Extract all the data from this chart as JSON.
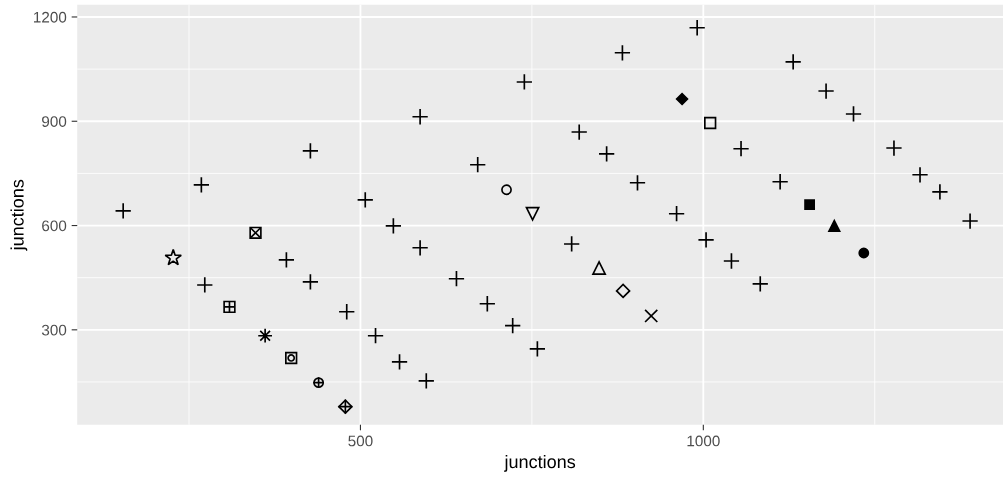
{
  "chart_data": {
    "type": "scatter",
    "xlabel": "junctions",
    "ylabel": "junctions",
    "xlim": [
      87,
      1437
    ],
    "ylim": [
      27,
      1235
    ],
    "xticks": [
      500,
      1000
    ],
    "yticks": [
      300,
      600,
      900,
      1200
    ],
    "grid": true,
    "series": [
      {
        "color": "#000000",
        "marker": "cross",
        "x": [
          154,
          268,
          273,
          427,
          392,
          427,
          480,
          507,
          522,
          548,
          557,
          587,
          587,
          596,
          640,
          671,
          685,
          722,
          739,
          758,
          808,
          819,
          859,
          882,
          904,
          961,
          991,
          1004,
          1055,
          1041,
          1083,
          1112,
          1131,
          1179,
          1219,
          1278,
          1316,
          1345,
          1389
        ],
        "values": [
          642,
          717,
          429,
          815,
          501,
          438,
          352,
          674,
          283,
          599,
          208,
          913,
          536,
          153,
          447,
          775,
          375,
          312,
          1013,
          245,
          547,
          869,
          806,
          1097,
          723,
          634,
          1169,
          559,
          821,
          498,
          432,
          726,
          1071,
          987,
          921,
          823,
          746,
          697,
          613
        ]
      },
      {
        "color": "#000000",
        "marker": "star",
        "x": [
          227
        ],
        "values": [
          507
        ]
      },
      {
        "color": "#000000",
        "marker": "square_x",
        "x": [
          347
        ],
        "values": [
          579
        ]
      },
      {
        "color": "#000000",
        "marker": "square_plus",
        "x": [
          309
        ],
        "values": [
          366
        ]
      },
      {
        "color": "#000000",
        "x": [
          361
        ],
        "values": [
          283
        ]
      },
      {
        "color": "#000000",
        "marker": "square_circle",
        "x": [
          399
        ],
        "values": [
          219
        ]
      },
      {
        "color": "#000000",
        "marker": "circle_plus",
        "x": [
          439
        ],
        "values": [
          148
        ]
      },
      {
        "color": "#000000",
        "marker": "diamond_plus",
        "x": [
          478
        ],
        "values": [
          79
        ]
      },
      {
        "color": "#000000",
        "marker": "circle",
        "x": [
          713
        ],
        "values": [
          703
        ]
      },
      {
        "color": "#000000",
        "marker": "triangle_down",
        "x": [
          751
        ],
        "values": [
          634
        ]
      },
      {
        "color": "#000000",
        "marker": "triangle",
        "x": [
          848
        ],
        "values": [
          478
        ]
      },
      {
        "color": "#000000",
        "marker": "diamond",
        "x": [
          883
        ],
        "values": [
          412
        ]
      },
      {
        "color": "#000000",
        "marker": "x",
        "x": [
          924
        ],
        "values": [
          340
        ]
      },
      {
        "color": "#000000",
        "marker": "diamond_filled",
        "x": [
          969
        ],
        "values": [
          964
        ]
      },
      {
        "color": "#000000",
        "marker": "square",
        "x": [
          1010
        ],
        "values": [
          895
        ]
      },
      {
        "color": "#000000",
        "marker": "square_filled",
        "x": [
          1155
        ],
        "values": [
          660
        ]
      },
      {
        "color": "#000000",
        "marker": "triangle_filled",
        "x": [
          1191
        ],
        "values": [
          599
        ]
      },
      {
        "color": "#000000",
        "marker": "circle_filled",
        "x": [
          1234
        ],
        "values": [
          521
        ]
      }
    ]
  }
}
